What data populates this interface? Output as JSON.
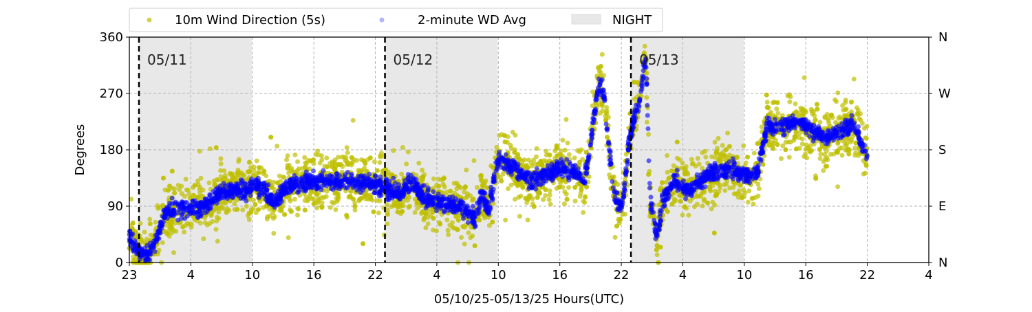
{
  "chart_data": {
    "type": "scatter",
    "title": "",
    "xlabel": "05/10/25-05/13/25  Hours(UTC)",
    "ylabel": "Degrees",
    "ylim": [
      0,
      360
    ],
    "xlim_hours": [
      0,
      78
    ],
    "x_units": "hours since plot start (05/10 ~23 UTC)",
    "xticks": [
      {
        "h": 0,
        "label": "23"
      },
      {
        "h": 6,
        "label": "4"
      },
      {
        "h": 12,
        "label": "10"
      },
      {
        "h": 18,
        "label": "16"
      },
      {
        "h": 24,
        "label": "22"
      },
      {
        "h": 30,
        "label": "4"
      },
      {
        "h": 36,
        "label": "10"
      },
      {
        "h": 42,
        "label": "16"
      },
      {
        "h": 48,
        "label": "22"
      },
      {
        "h": 54,
        "label": "4"
      },
      {
        "h": 60,
        "label": "10"
      },
      {
        "h": 66,
        "label": "16"
      },
      {
        "h": 72,
        "label": "22"
      },
      {
        "h": 78,
        "label": "4"
      }
    ],
    "yticks": [
      0,
      90,
      180,
      270,
      360
    ],
    "yticks_right": [
      "N",
      "E",
      "S",
      "W",
      "N"
    ],
    "grid": true,
    "legend": {
      "placement": "top-left, above plot",
      "entries": [
        "10m Wind Direction (5s)",
        "2-minute WD Avg",
        "NIGHT"
      ]
    },
    "midnights": [
      {
        "h": 0.94,
        "label": "05/11"
      },
      {
        "h": 24.94,
        "label": "05/12"
      },
      {
        "h": 48.94,
        "label": "05/13"
      }
    ],
    "nights": [
      [
        0.94,
        11.94
      ],
      [
        24.94,
        35.94
      ],
      [
        48.94,
        59.94
      ]
    ],
    "colors": {
      "wd5s": "#bfbf00",
      "wd2min": "#0000ff",
      "night": "#e8e8e8"
    },
    "series": [
      {
        "name": "2-minute WD Avg (approximate trend, degrees)",
        "points": [
          [
            0,
            45
          ],
          [
            0.8,
            20
          ],
          [
            1.8,
            10
          ],
          [
            2.5,
            30
          ],
          [
            3.5,
            80
          ],
          [
            4.8,
            85
          ],
          [
            7.5,
            90
          ],
          [
            8.9,
            110
          ],
          [
            10.2,
            115
          ],
          [
            12.9,
            120
          ],
          [
            14.2,
            95
          ],
          [
            15.6,
            125
          ],
          [
            18.3,
            130
          ],
          [
            21,
            130
          ],
          [
            23.6,
            125
          ],
          [
            25,
            120
          ],
          [
            26.3,
            110
          ],
          [
            27.6,
            130
          ],
          [
            29,
            100
          ],
          [
            31,
            95
          ],
          [
            32.3,
            90
          ],
          [
            33.7,
            70
          ],
          [
            34.4,
            110
          ],
          [
            35,
            80
          ],
          [
            36,
            165
          ],
          [
            37.7,
            150
          ],
          [
            39,
            130
          ],
          [
            40.4,
            140
          ],
          [
            41.7,
            150
          ],
          [
            43.1,
            150
          ],
          [
            44.4,
            130
          ],
          [
            45.1,
            200
          ],
          [
            45.8,
            290
          ],
          [
            46.4,
            260
          ],
          [
            46.8,
            180
          ],
          [
            47.4,
            100
          ],
          [
            48.1,
            90
          ],
          [
            48.8,
            200
          ],
          [
            49.8,
            260
          ],
          [
            50.4,
            330
          ],
          [
            50.8,
            100
          ],
          [
            51.5,
            40
          ],
          [
            52.1,
            100
          ],
          [
            53.1,
            130
          ],
          [
            54.5,
            115
          ],
          [
            56.5,
            140
          ],
          [
            58.5,
            150
          ],
          [
            59.9,
            140
          ],
          [
            61.2,
            140
          ],
          [
            62.2,
            215
          ],
          [
            63.9,
            220
          ],
          [
            65.2,
            225
          ],
          [
            66.6,
            210
          ],
          [
            67.9,
            200
          ],
          [
            69.3,
            210
          ],
          [
            70.6,
            220
          ],
          [
            72,
            170
          ]
        ]
      }
    ]
  }
}
